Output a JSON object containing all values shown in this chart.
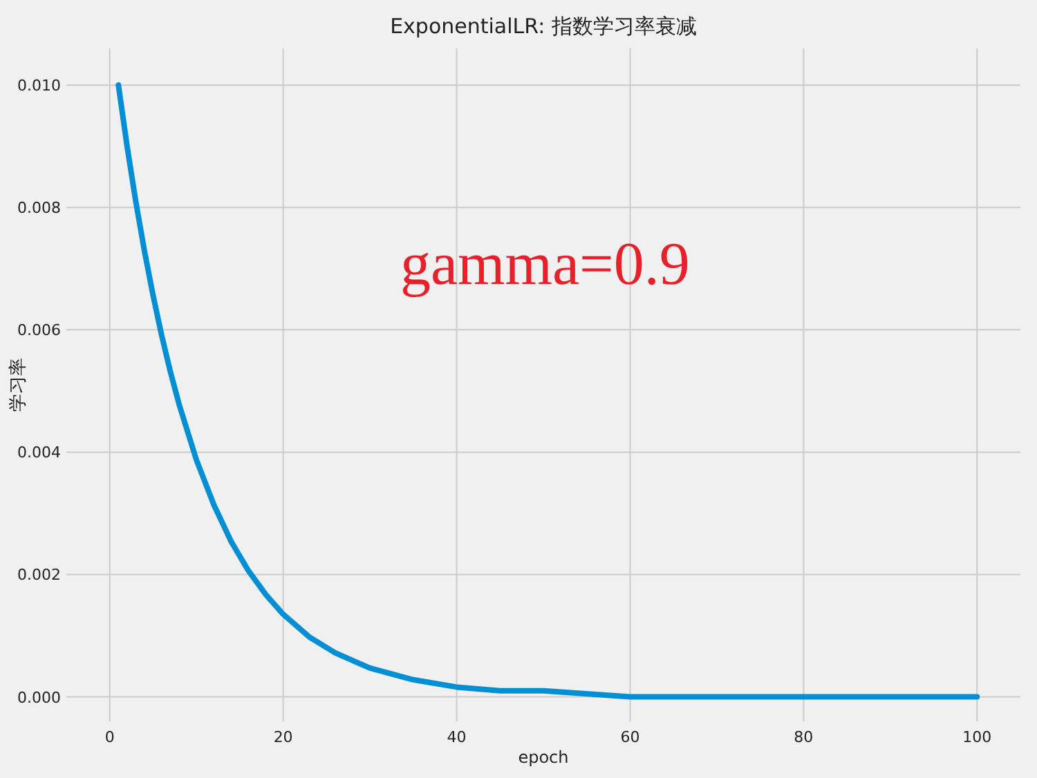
{
  "chart_data": {
    "type": "line",
    "title": "ExponentialLR: 指数学习率衰减",
    "xlabel": "epoch",
    "ylabel": "学习率",
    "annotations": [
      "gamma=0.9"
    ],
    "x": [
      1,
      2,
      3,
      4,
      5,
      6,
      7,
      8,
      10,
      12,
      14,
      16,
      18,
      20,
      23,
      26,
      30,
      35,
      40,
      45,
      50,
      60,
      70,
      80,
      90,
      100
    ],
    "series": [
      {
        "color": "#008fd5",
        "values": [
          0.01,
          0.009,
          0.0081,
          0.00729,
          0.00656,
          0.0059,
          0.00531,
          0.00478,
          0.00387,
          0.00314,
          0.00254,
          0.00206,
          0.00167,
          0.00135,
          0.00098,
          0.00072,
          0.00047,
          0.00028,
          0.00016,
          0.0001,
          0.0001,
          0,
          0,
          0,
          0,
          0
        ]
      }
    ],
    "xlim": [
      -5,
      105
    ],
    "ylim": [
      -0.0004,
      0.0106
    ],
    "xticks": [
      0,
      20,
      40,
      60,
      80,
      100
    ],
    "yticks": [
      {
        "value": 0,
        "label": "0.000"
      },
      {
        "value": 0.002,
        "label": "0.002"
      },
      {
        "value": 0.004,
        "label": "0.004"
      },
      {
        "value": 0.006,
        "label": "0.006"
      },
      {
        "value": 0.008,
        "label": "0.008"
      },
      {
        "value": 0.01,
        "label": "0.010"
      }
    ],
    "grid": true
  }
}
